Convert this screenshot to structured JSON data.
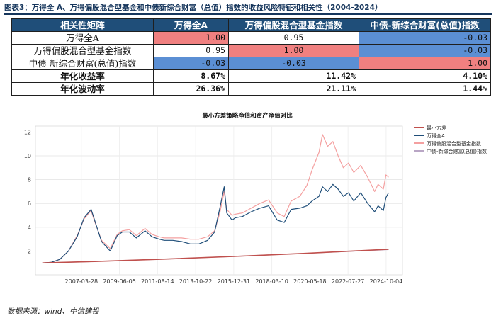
{
  "figure_title": "图表3：万得全 A、万得偏股混合型基金和中债新综合财富（总值）指数的收益风险特征和相关性（2004-2024）",
  "table": {
    "header": [
      "相关性矩阵",
      "万得全A",
      "万得偏股混合型基金指数",
      "中债-新综合财富(总值)指数"
    ],
    "rows": [
      {
        "label": "万得全A",
        "cells": [
          "1.00",
          "0.95",
          "-0.03"
        ],
        "styles": [
          "red",
          "",
          "blue"
        ]
      },
      {
        "label": "万得偏股混合型基金指数",
        "cells": [
          "0.95",
          "1.00",
          "-0.03"
        ],
        "styles": [
          "",
          "red",
          "blue"
        ]
      },
      {
        "label": "中债-新综合财富(总值)指数",
        "cells": [
          "-0.03",
          "-0.03",
          "1.00"
        ],
        "styles": [
          "blue",
          "blue",
          "red"
        ]
      },
      {
        "label": "年化收益率",
        "cells": [
          "8.67%",
          "11.42%",
          "4.10%"
        ],
        "styles": [
          "",
          "",
          ""
        ],
        "bold": true
      },
      {
        "label": "年化波动率",
        "cells": [
          "26.36%",
          "21.11%",
          "1.44%"
        ],
        "styles": [
          "",
          "",
          ""
        ],
        "bold": true
      }
    ]
  },
  "chart_data": {
    "type": "line",
    "title": "最小方差策略净值和资产净值对比",
    "xlabel": "",
    "ylabel": "",
    "x_ticks": [
      "2007-03-28",
      "2009-06-05",
      "2011-08-14",
      "2013-10-22",
      "2015-12-31",
      "2018-03-10",
      "2020-05-18",
      "2022-07-27",
      "2024-10-04"
    ],
    "ylim": [
      0,
      12.5
    ],
    "y_ticks": [
      2,
      4,
      6,
      8,
      10,
      12
    ],
    "xlim": [
      2004.6,
      2025.7
    ],
    "grid": true,
    "legend": "top-right",
    "series": [
      {
        "name": "最小方差",
        "color": "#c0504d",
        "x": [
          2005.0,
          2008.0,
          2012.0,
          2016.0,
          2020.0,
          2024.9
        ],
        "y": [
          1.0,
          1.12,
          1.32,
          1.55,
          1.8,
          2.15
        ]
      },
      {
        "name": "万得全A",
        "color": "#1f4e79",
        "x": [
          2005.0,
          2005.5,
          2006.0,
          2006.5,
          2007.0,
          2007.4,
          2007.8,
          2008.0,
          2008.4,
          2008.9,
          2009.3,
          2009.6,
          2010.0,
          2010.4,
          2010.9,
          2011.3,
          2011.7,
          2012.0,
          2012.5,
          2013.0,
          2013.5,
          2014.0,
          2014.5,
          2014.9,
          2015.2,
          2015.45,
          2015.6,
          2015.9,
          2016.1,
          2016.5,
          2017.0,
          2017.5,
          2018.0,
          2018.5,
          2018.9,
          2019.3,
          2019.8,
          2020.2,
          2020.5,
          2020.9,
          2021.1,
          2021.4,
          2021.7,
          2022.0,
          2022.3,
          2022.6,
          2022.9,
          2023.3,
          2023.7,
          2024.1,
          2024.3,
          2024.6,
          2024.75,
          2024.9
        ],
        "y": [
          1.0,
          1.05,
          1.3,
          2.0,
          3.2,
          4.8,
          5.5,
          4.6,
          2.8,
          2.0,
          3.3,
          3.6,
          3.6,
          3.1,
          3.7,
          3.2,
          3.0,
          2.9,
          2.9,
          2.8,
          2.6,
          2.6,
          2.9,
          3.6,
          5.6,
          7.4,
          5.2,
          4.6,
          4.8,
          4.9,
          5.3,
          5.6,
          5.8,
          4.6,
          4.4,
          5.5,
          5.6,
          5.8,
          6.2,
          6.6,
          7.4,
          7.0,
          7.6,
          7.2,
          6.6,
          6.9,
          6.2,
          6.9,
          6.0,
          5.3,
          5.8,
          5.4,
          6.5,
          6.9
        ]
      },
      {
        "name": "万得偏股混合型基金指数",
        "color": "#f4a0a0",
        "x": [
          2005.0,
          2005.5,
          2006.0,
          2006.5,
          2007.0,
          2007.4,
          2007.8,
          2008.0,
          2008.4,
          2008.9,
          2009.3,
          2009.6,
          2010.0,
          2010.4,
          2010.9,
          2011.3,
          2011.7,
          2012.0,
          2012.5,
          2013.0,
          2013.5,
          2014.0,
          2014.5,
          2014.9,
          2015.2,
          2015.45,
          2015.6,
          2015.9,
          2016.1,
          2016.5,
          2017.0,
          2017.5,
          2018.0,
          2018.5,
          2018.9,
          2019.3,
          2019.8,
          2020.2,
          2020.5,
          2020.9,
          2021.1,
          2021.4,
          2021.7,
          2022.0,
          2022.3,
          2022.6,
          2022.9,
          2023.3,
          2023.7,
          2024.1,
          2024.3,
          2024.6,
          2024.75,
          2024.9
        ],
        "y": [
          1.0,
          1.05,
          1.3,
          2.0,
          3.3,
          4.7,
          5.4,
          4.5,
          2.9,
          2.2,
          3.4,
          3.7,
          3.8,
          3.3,
          3.9,
          3.4,
          3.2,
          3.1,
          3.1,
          3.1,
          3.0,
          3.0,
          3.2,
          3.7,
          5.2,
          7.0,
          5.5,
          5.0,
          5.1,
          5.2,
          5.6,
          6.0,
          6.3,
          5.2,
          4.9,
          6.2,
          6.6,
          7.5,
          8.8,
          10.3,
          11.8,
          10.8,
          11.2,
          10.0,
          9.0,
          9.4,
          8.6,
          9.2,
          8.2,
          7.0,
          7.6,
          7.2,
          8.4,
          8.2
        ]
      },
      {
        "name": "中债-新综合财富(总值)指数",
        "color": "#b9a6c5",
        "x": [
          2005.0,
          2008.0,
          2012.0,
          2016.0,
          2020.0,
          2024.9
        ],
        "y": [
          1.0,
          1.12,
          1.32,
          1.55,
          1.8,
          2.12
        ]
      }
    ]
  },
  "source": "数据来源：wind、中信建投"
}
